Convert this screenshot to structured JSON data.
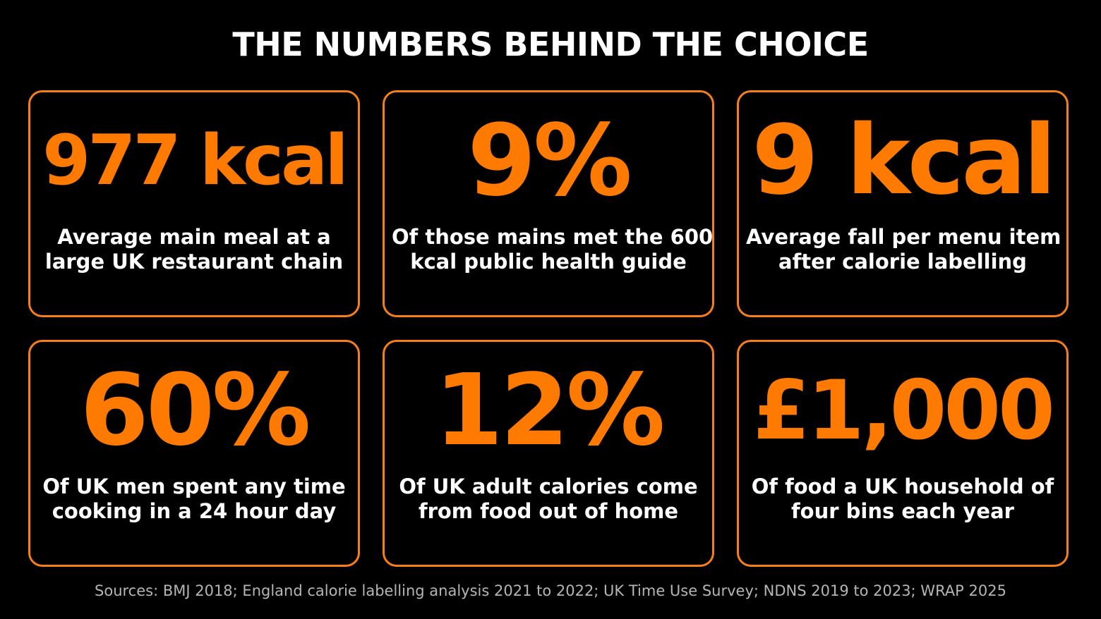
{
  "title": "THE NUMBERS BEHIND THE CHOICE",
  "cards": [
    {
      "stat": "977 kcal",
      "description": [
        "Average main meal at a",
        "large UK restaurant chain"
      ]
    },
    {
      "stat": "9%",
      "description": [
        "Of those mains met the 600",
        "kcal public health guide"
      ]
    },
    {
      "stat": "9 kcal",
      "description": [
        "Average fall per menu item",
        "after calorie labelling"
      ]
    },
    {
      "stat": "60%",
      "description": [
        "Of UK men spent any time",
        "cooking in a 24 hour day"
      ]
    },
    {
      "stat": "12%",
      "description": [
        "Of UK adult calories come",
        "from food out of home"
      ]
    },
    {
      "stat": "£1,000",
      "description": [
        "Of food a UK household of",
        "four bins each year"
      ]
    }
  ],
  "sources": "Sources: BMJ 2018; England calorie labelling analysis 2021 to 2022; UK Time Use Survey; NDNS 2019 to 2023; WRAP 2025"
}
